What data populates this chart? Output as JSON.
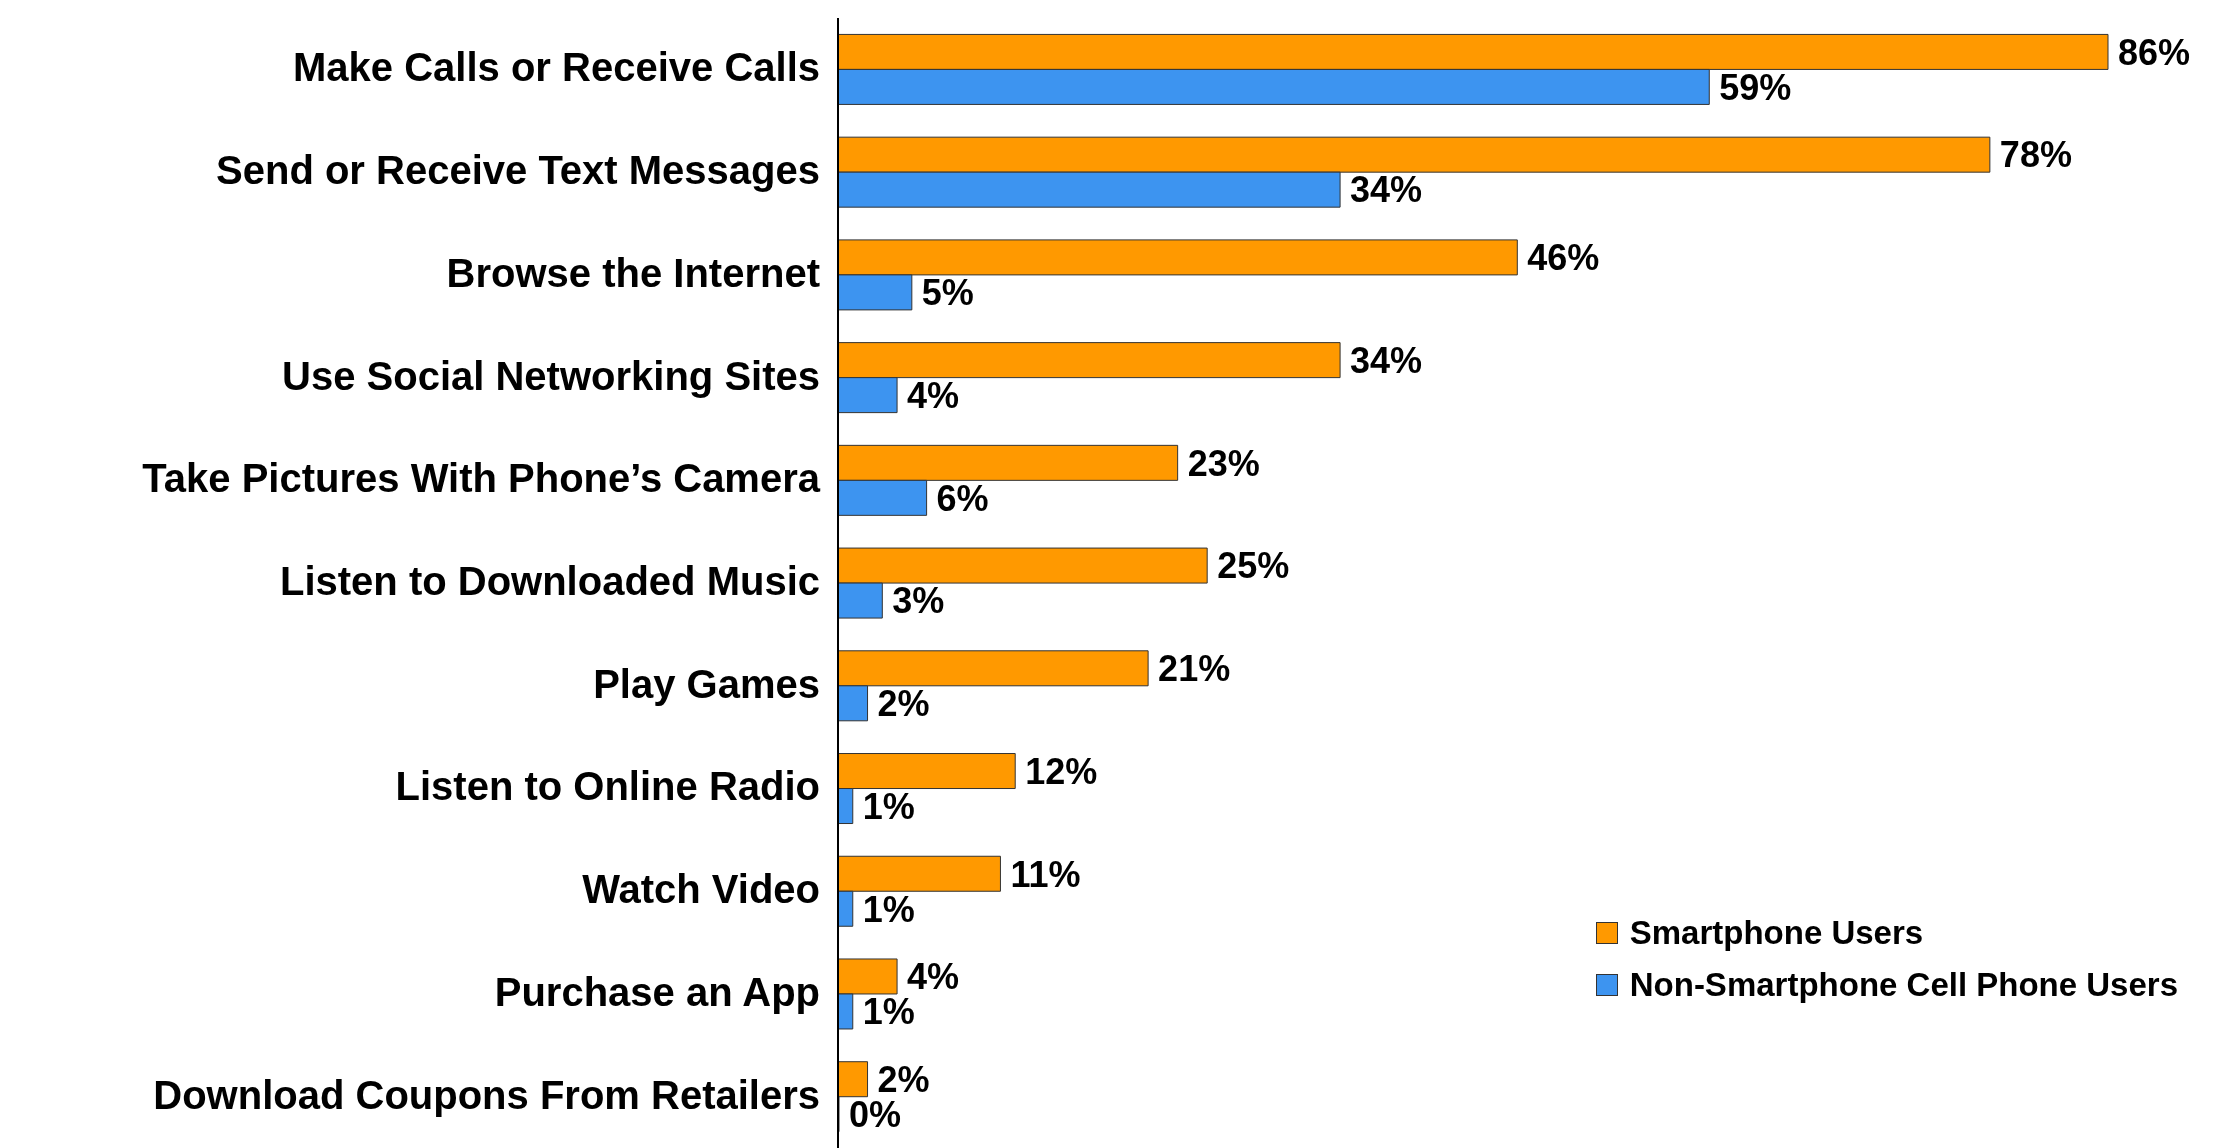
{
  "chart_data": {
    "type": "bar",
    "orientation": "horizontal",
    "categories": [
      "Make Calls or Receive Calls",
      "Send or Receive Text Messages",
      "Browse the Internet",
      "Use Social Networking Sites",
      "Take Pictures With Phone’s Camera",
      "Listen to Downloaded Music",
      "Play Games",
      "Listen to Online Radio",
      "Watch Video",
      "Purchase an App",
      "Download Coupons From Retailers"
    ],
    "series": [
      {
        "name": "Smartphone Users",
        "color": "#ff9900",
        "values": [
          86,
          78,
          46,
          34,
          23,
          25,
          21,
          12,
          11,
          4,
          2
        ],
        "value_labels": [
          "86%",
          "78%",
          "46%",
          "34%",
          "23%",
          "25%",
          "21%",
          "12%",
          "11%",
          "4%",
          "2%"
        ]
      },
      {
        "name": "Non-Smartphone Cell Phone Users",
        "color": "#3d94f0",
        "values": [
          59,
          34,
          5,
          4,
          6,
          3,
          2,
          1,
          1,
          1,
          0
        ],
        "value_labels": [
          "59%",
          "34%",
          "5%",
          "4%",
          "6%",
          "3%",
          "2%",
          "1%",
          "1%",
          "1%",
          "0%"
        ]
      }
    ],
    "legend": "bottom right",
    "grid": false
  }
}
